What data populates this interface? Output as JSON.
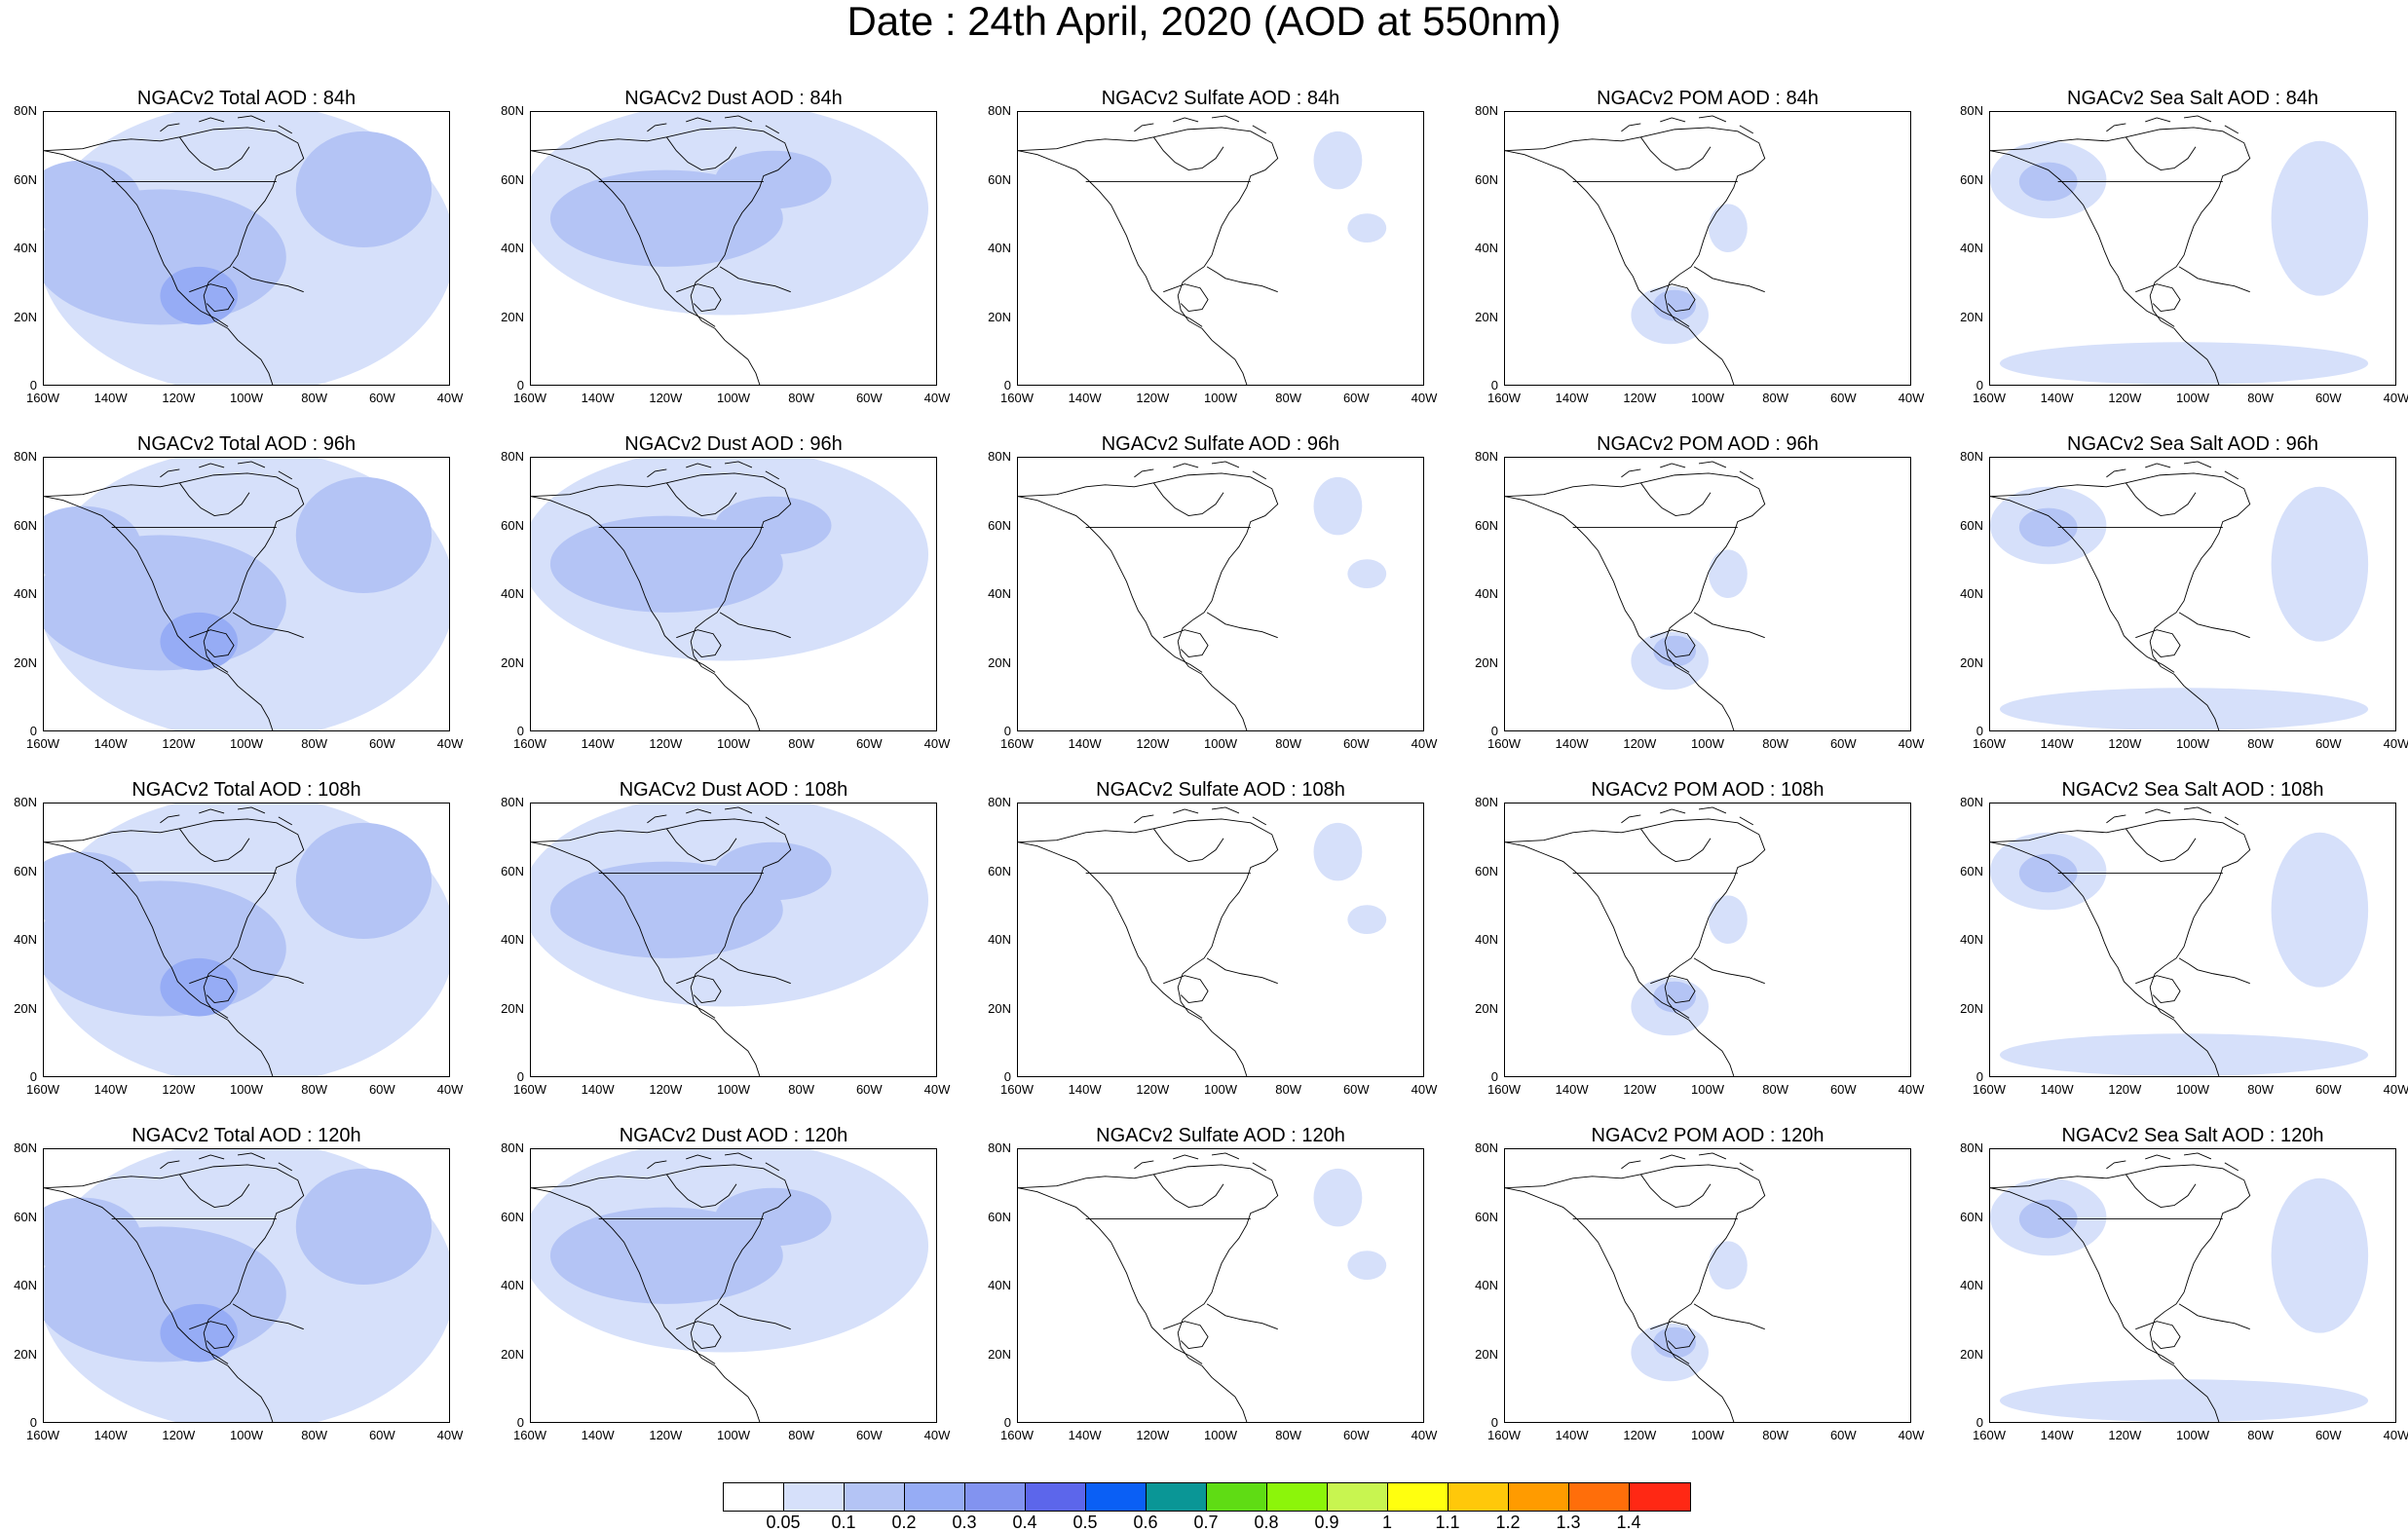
{
  "title": "Date : 24th April, 2020 (AOD at 550nm)",
  "axes": {
    "lat_labels": [
      "80N",
      "60N",
      "40N",
      "20N",
      "0"
    ],
    "lon_labels": [
      "160W",
      "140W",
      "120W",
      "100W",
      "80W",
      "60W",
      "40W"
    ]
  },
  "panels": [
    {
      "title": "NGACv2 Total AOD : 84h",
      "species": "total",
      "hour": 84
    },
    {
      "title": "NGACv2 Dust AOD : 84h",
      "species": "dust",
      "hour": 84
    },
    {
      "title": "NGACv2 Sulfate AOD : 84h",
      "species": "sulfate",
      "hour": 84
    },
    {
      "title": "NGACv2 POM AOD : 84h",
      "species": "pom",
      "hour": 84
    },
    {
      "title": "NGACv2 Sea Salt AOD : 84h",
      "species": "seasalt",
      "hour": 84
    },
    {
      "title": "NGACv2 Total AOD : 96h",
      "species": "total",
      "hour": 96
    },
    {
      "title": "NGACv2 Dust AOD : 96h",
      "species": "dust",
      "hour": 96
    },
    {
      "title": "NGACv2 Sulfate AOD : 96h",
      "species": "sulfate",
      "hour": 96
    },
    {
      "title": "NGACv2 POM AOD : 96h",
      "species": "pom",
      "hour": 96
    },
    {
      "title": "NGACv2 Sea Salt AOD : 96h",
      "species": "seasalt",
      "hour": 96
    },
    {
      "title": "NGACv2 Total AOD : 108h",
      "species": "total",
      "hour": 108
    },
    {
      "title": "NGACv2 Dust AOD : 108h",
      "species": "dust",
      "hour": 108
    },
    {
      "title": "NGACv2 Sulfate AOD : 108h",
      "species": "sulfate",
      "hour": 108
    },
    {
      "title": "NGACv2 POM AOD : 108h",
      "species": "pom",
      "hour": 108
    },
    {
      "title": "NGACv2 Sea Salt AOD : 108h",
      "species": "seasalt",
      "hour": 108
    },
    {
      "title": "NGACv2 Total AOD : 120h",
      "species": "total",
      "hour": 120
    },
    {
      "title": "NGACv2 Dust AOD : 120h",
      "species": "dust",
      "hour": 120
    },
    {
      "title": "NGACv2 Sulfate AOD : 120h",
      "species": "sulfate",
      "hour": 120
    },
    {
      "title": "NGACv2 POM AOD : 120h",
      "species": "pom",
      "hour": 120
    },
    {
      "title": "NGACv2 Sea Salt  AOD : 120h",
      "species": "seasalt",
      "hour": 120
    }
  ],
  "colorbar": {
    "labels": [
      "0.05",
      "0.1",
      "0.2",
      "0.3",
      "0.4",
      "0.5",
      "0.6",
      "0.7",
      "0.8",
      "0.9",
      "1",
      "1.1",
      "1.2",
      "1.3",
      "1.4"
    ],
    "colors": [
      "#ffffff",
      "#d6e0fa",
      "#b4c4f5",
      "#96acf5",
      "#8293f0",
      "#5c66eb",
      "#0a5ff5",
      "#0a9696",
      "#5fdc14",
      "#8cf50a",
      "#c8f550",
      "#ffff0f",
      "#ffc80a",
      "#ff9b00",
      "#ff6e0a",
      "#ff2814"
    ]
  },
  "colors": {
    "light_blue": "#d6e0fa",
    "mid_blue": "#b4c4f5",
    "blue": "#96acf5",
    "strong_blue": "#6e82eb"
  }
}
